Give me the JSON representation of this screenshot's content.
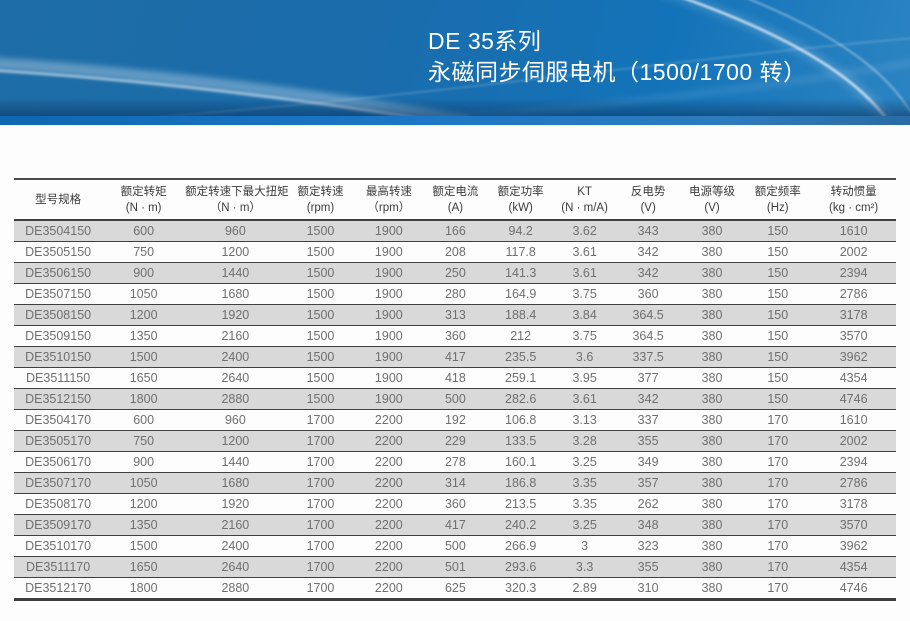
{
  "banner": {
    "title_line1": "DE 35系列",
    "title_line2": "永磁同步伺服电机（1500/1700 转）",
    "colors": {
      "banner_blue": "#1a6cab",
      "banner_bright": "#2c84c2",
      "bottom_strip": "#1b77c6",
      "title_text": "#ffffff"
    }
  },
  "table": {
    "columns": [
      {
        "line1": "型号规格",
        "line2": ""
      },
      {
        "line1": "额定转矩",
        "line2": "(N · m)"
      },
      {
        "line1": "额定转速下最大扭矩",
        "line2": "（N · m）"
      },
      {
        "line1": "额定转速",
        "line2": "(rpm)"
      },
      {
        "line1": "最高转速",
        "line2": "（rpm）"
      },
      {
        "line1": "额定电流",
        "line2": "(A)"
      },
      {
        "line1": "额定功率",
        "line2": "(kW)"
      },
      {
        "line1": "KT",
        "line2": "(N · m/A)"
      },
      {
        "line1": "反电势",
        "line2": "(V)"
      },
      {
        "line1": "电源等级",
        "line2": "(V)"
      },
      {
        "line1": "额定频率",
        "line2": "(Hz)"
      },
      {
        "line1": "转动惯量",
        "line2": "(kg · cm²)"
      }
    ],
    "rows": [
      [
        "DE3504150",
        "600",
        "960",
        "1500",
        "1900",
        "166",
        "94.2",
        "3.62",
        "343",
        "380",
        "150",
        "1610"
      ],
      [
        "DE3505150",
        "750",
        "1200",
        "1500",
        "1900",
        "208",
        "117.8",
        "3.61",
        "342",
        "380",
        "150",
        "2002"
      ],
      [
        "DE3506150",
        "900",
        "1440",
        "1500",
        "1900",
        "250",
        "141.3",
        "3.61",
        "342",
        "380",
        "150",
        "2394"
      ],
      [
        "DE3507150",
        "1050",
        "1680",
        "1500",
        "1900",
        "280",
        "164.9",
        "3.75",
        "360",
        "380",
        "150",
        "2786"
      ],
      [
        "DE3508150",
        "1200",
        "1920",
        "1500",
        "1900",
        "313",
        "188.4",
        "3.84",
        "364.5",
        "380",
        "150",
        "3178"
      ],
      [
        "DE3509150",
        "1350",
        "2160",
        "1500",
        "1900",
        "360",
        "212",
        "3.75",
        "364.5",
        "380",
        "150",
        "3570"
      ],
      [
        "DE3510150",
        "1500",
        "2400",
        "1500",
        "1900",
        "417",
        "235.5",
        "3.6",
        "337.5",
        "380",
        "150",
        "3962"
      ],
      [
        "DE3511150",
        "1650",
        "2640",
        "1500",
        "1900",
        "418",
        "259.1",
        "3.95",
        "377",
        "380",
        "150",
        "4354"
      ],
      [
        "DE3512150",
        "1800",
        "2880",
        "1500",
        "1900",
        "500",
        "282.6",
        "3.61",
        "342",
        "380",
        "150",
        "4746"
      ],
      [
        "DE3504170",
        "600",
        "960",
        "1700",
        "2200",
        "192",
        "106.8",
        "3.13",
        "337",
        "380",
        "170",
        "1610"
      ],
      [
        "DE3505170",
        "750",
        "1200",
        "1700",
        "2200",
        "229",
        "133.5",
        "3.28",
        "355",
        "380",
        "170",
        "2002"
      ],
      [
        "DE3506170",
        "900",
        "1440",
        "1700",
        "2200",
        "278",
        "160.1",
        "3.25",
        "349",
        "380",
        "170",
        "2394"
      ],
      [
        "DE3507170",
        "1050",
        "1680",
        "1700",
        "2200",
        "314",
        "186.8",
        "3.35",
        "357",
        "380",
        "170",
        "2786"
      ],
      [
        "DE3508170",
        "1200",
        "1920",
        "1700",
        "2200",
        "360",
        "213.5",
        "3.35",
        "262",
        "380",
        "170",
        "3178"
      ],
      [
        "DE3509170",
        "1350",
        "2160",
        "1700",
        "2200",
        "417",
        "240.2",
        "3.25",
        "348",
        "380",
        "170",
        "3570"
      ],
      [
        "DE3510170",
        "1500",
        "2400",
        "1700",
        "2200",
        "500",
        "266.9",
        "3",
        "323",
        "380",
        "170",
        "3962"
      ],
      [
        "DE3511170",
        "1650",
        "2640",
        "1700",
        "2200",
        "501",
        "293.6",
        "3.3",
        "355",
        "380",
        "170",
        "4354"
      ],
      [
        "DE3512170",
        "1800",
        "2880",
        "1700",
        "2200",
        "625",
        "320.3",
        "2.89",
        "310",
        "380",
        "170",
        "4746"
      ]
    ],
    "colors": {
      "row_alt": "#d9d9d9",
      "row_text": "#6f6f6f",
      "header_text": "#3c3c3c",
      "border": "#404040"
    }
  }
}
